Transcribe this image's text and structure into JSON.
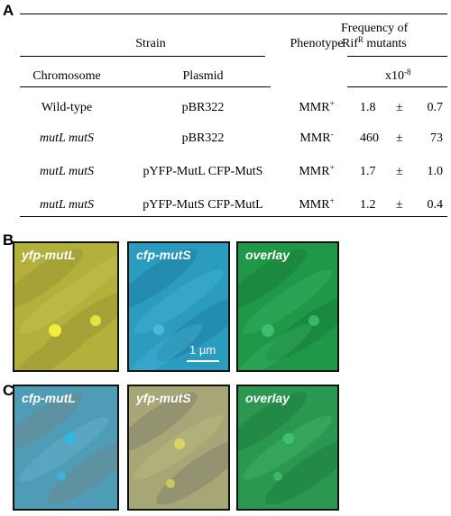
{
  "panel_a": {
    "letter": "A",
    "head": {
      "strain": "Strain",
      "phenotype": "Phenotype",
      "freq_line1": "Frequency of",
      "freq_line2_base": "Rif",
      "freq_line2_sup": "R",
      "freq_line2_rest": " mutants",
      "chromosome": "Chromosome",
      "plasmid": "Plasmid",
      "unit_base": "x10",
      "unit_sup": "-8"
    },
    "rows": [
      {
        "chromosome": "Wild-type",
        "italic": false,
        "plasmid": "pBR322",
        "phen_base": "MMR",
        "phen_sup": "+",
        "freq": "1.8",
        "pm": "±",
        "err": "0.7"
      },
      {
        "chromosome": "mutL mutS",
        "italic": true,
        "plasmid": "pBR322",
        "phen_base": "MMR",
        "phen_sup": "-",
        "freq": "460",
        "pm": "±",
        "err": "73"
      },
      {
        "chromosome": "mutL mutS",
        "italic": true,
        "plasmid": "pYFP-MutL CFP-MutS",
        "phen_base": "MMR",
        "phen_sup": "+",
        "freq": "1.7",
        "pm": "±",
        "err": "1.0"
      },
      {
        "chromosome": "mutL mutS",
        "italic": true,
        "plasmid": "pYFP-MutS CFP-MutL",
        "phen_base": "MMR",
        "phen_sup": "+",
        "freq": "1.2",
        "pm": "±",
        "err": "0.4"
      }
    ]
  },
  "panel_b": {
    "letter": "B",
    "images": [
      {
        "label": "yfp-mutL",
        "color": "#b8b43a"
      },
      {
        "label": "cfp-mutS",
        "color": "#2a9fc0"
      },
      {
        "label": "overlay",
        "color": "#1f9a4a"
      }
    ],
    "scale_label": "1 µm"
  },
  "panel_c": {
    "letter": "C",
    "images": [
      {
        "label": "cfp-mutL",
        "color": "#4e9eb8"
      },
      {
        "label": "yfp-mutS",
        "color": "#a8a874"
      },
      {
        "label": "overlay",
        "color": "#2a9a52"
      }
    ]
  }
}
